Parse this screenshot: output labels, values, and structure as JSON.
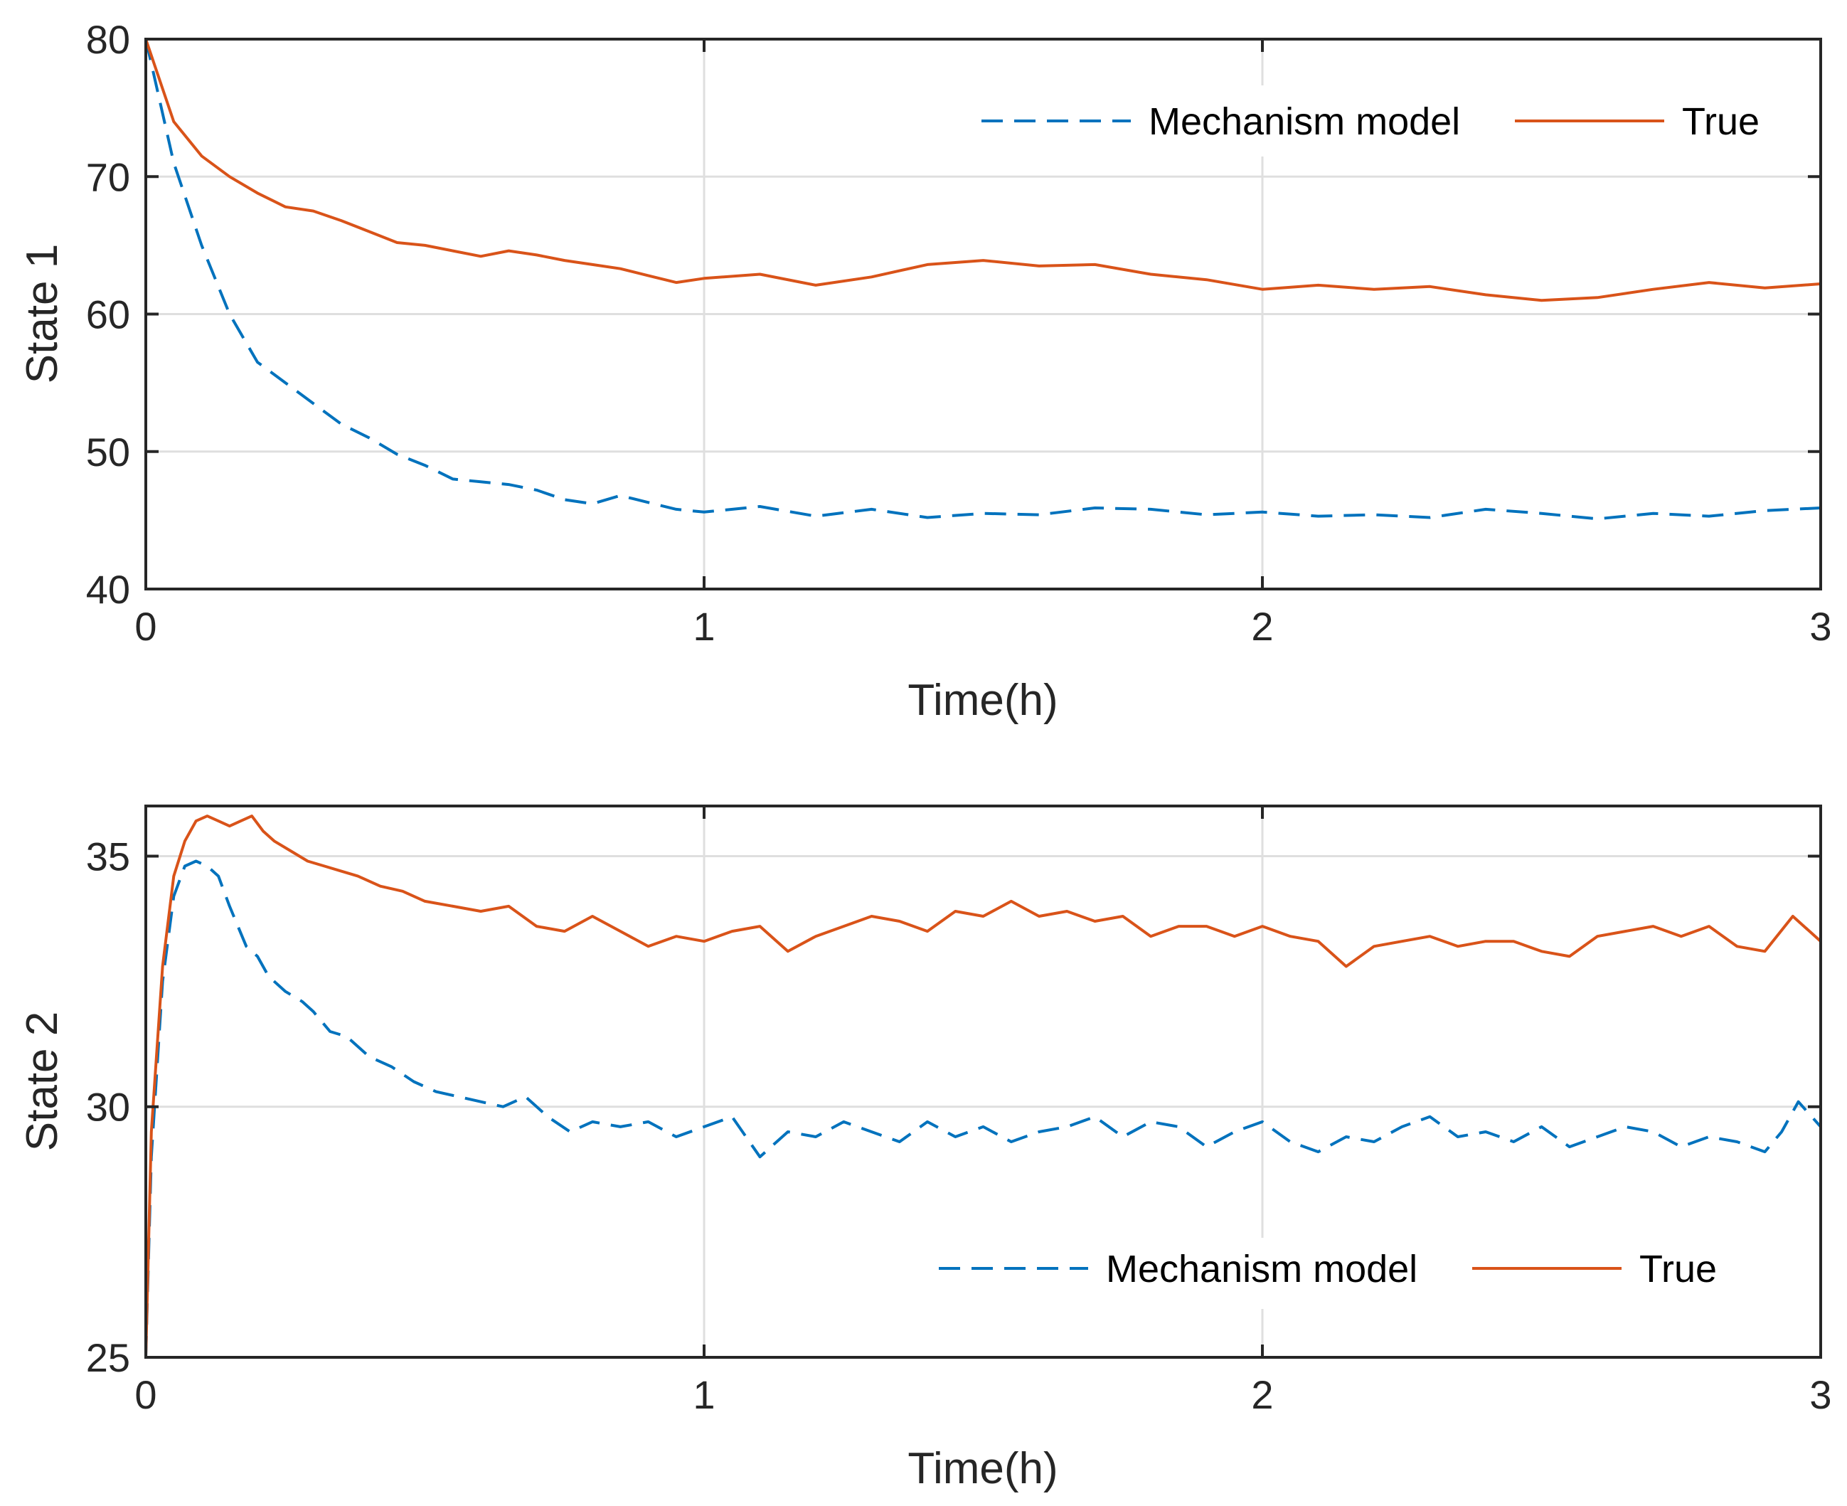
{
  "colors": {
    "mechanism": "#0072BD",
    "true": "#D95319",
    "grid": "#DFDFDF",
    "axis": "#262626",
    "background": "#FFFFFF"
  },
  "chart_data": [
    {
      "type": "line",
      "id": "state1",
      "xlabel": "Time(h)",
      "ylabel": "State 1",
      "xlim": [
        0,
        3
      ],
      "ylim": [
        40,
        80
      ],
      "xticks": [
        0,
        1,
        2,
        3
      ],
      "yticks": [
        40,
        50,
        60,
        70,
        80
      ],
      "xtick_labels": [
        "0",
        "1",
        "2",
        "3"
      ],
      "ytick_labels": [
        "40",
        "50",
        "60",
        "70",
        "80"
      ],
      "grid": true,
      "legend": {
        "position": "top-right",
        "orientation": "horizontal",
        "entries": [
          "Mechanism model",
          "True"
        ]
      },
      "series": [
        {
          "name": "Mechanism model",
          "style": "dashed",
          "color": "#0072BD",
          "x": [
            0,
            0.05,
            0.1,
            0.15,
            0.2,
            0.25,
            0.3,
            0.35,
            0.4,
            0.45,
            0.5,
            0.55,
            0.6,
            0.65,
            0.7,
            0.75,
            0.8,
            0.85,
            0.9,
            0.95,
            1.0,
            1.1,
            1.2,
            1.3,
            1.4,
            1.5,
            1.6,
            1.7,
            1.8,
            1.9,
            2.0,
            2.1,
            2.2,
            2.3,
            2.4,
            2.5,
            2.6,
            2.7,
            2.8,
            2.9,
            3.0
          ],
          "y": [
            80,
            71,
            65,
            60,
            56.5,
            55,
            53.5,
            52,
            51,
            49.8,
            49,
            48,
            47.8,
            47.6,
            47.2,
            46.5,
            46.2,
            46.8,
            46.3,
            45.8,
            45.6,
            46,
            45.3,
            45.8,
            45.2,
            45.5,
            45.4,
            45.9,
            45.8,
            45.4,
            45.6,
            45.3,
            45.4,
            45.2,
            45.8,
            45.5,
            45.1,
            45.5,
            45.3,
            45.7,
            45.9
          ]
        },
        {
          "name": "True",
          "style": "solid",
          "color": "#D95319",
          "x": [
            0,
            0.05,
            0.1,
            0.15,
            0.2,
            0.25,
            0.3,
            0.35,
            0.4,
            0.45,
            0.5,
            0.55,
            0.6,
            0.65,
            0.7,
            0.75,
            0.8,
            0.85,
            0.9,
            0.95,
            1.0,
            1.1,
            1.2,
            1.3,
            1.4,
            1.5,
            1.6,
            1.7,
            1.8,
            1.9,
            2.0,
            2.1,
            2.2,
            2.3,
            2.4,
            2.5,
            2.6,
            2.7,
            2.8,
            2.9,
            3.0
          ],
          "y": [
            80,
            74,
            71.5,
            70,
            68.8,
            67.8,
            67.5,
            66.8,
            66,
            65.2,
            65,
            64.6,
            64.2,
            64.6,
            64.3,
            63.9,
            63.6,
            63.3,
            62.8,
            62.3,
            62.6,
            62.9,
            62.1,
            62.7,
            63.6,
            63.9,
            63.5,
            63.6,
            62.9,
            62.5,
            61.8,
            62.1,
            61.8,
            62.0,
            61.4,
            61.0,
            61.2,
            61.8,
            62.3,
            61.9,
            62.2
          ]
        }
      ]
    },
    {
      "type": "line",
      "id": "state2",
      "xlabel": "Time(h)",
      "ylabel": "State 2",
      "xlim": [
        0,
        3
      ],
      "ylim": [
        25,
        36
      ],
      "xticks": [
        0,
        1,
        2,
        3
      ],
      "yticks": [
        25,
        30,
        35
      ],
      "xtick_labels": [
        "0",
        "1",
        "2",
        "3"
      ],
      "ytick_labels": [
        "25",
        "30",
        "35"
      ],
      "grid": true,
      "legend": {
        "position": "bottom-right",
        "orientation": "horizontal",
        "entries": [
          "Mechanism model",
          "True"
        ]
      },
      "series": [
        {
          "name": "Mechanism model",
          "style": "dashed",
          "color": "#0072BD",
          "x": [
            0,
            0.01,
            0.03,
            0.05,
            0.07,
            0.09,
            0.11,
            0.13,
            0.15,
            0.18,
            0.2,
            0.22,
            0.25,
            0.28,
            0.3,
            0.33,
            0.36,
            0.4,
            0.44,
            0.48,
            0.52,
            0.56,
            0.6,
            0.64,
            0.68,
            0.72,
            0.76,
            0.8,
            0.85,
            0.9,
            0.95,
            1.0,
            1.05,
            1.1,
            1.15,
            1.2,
            1.25,
            1.3,
            1.35,
            1.4,
            1.45,
            1.5,
            1.55,
            1.6,
            1.65,
            1.7,
            1.75,
            1.8,
            1.85,
            1.9,
            1.95,
            2.0,
            2.05,
            2.1,
            2.15,
            2.2,
            2.25,
            2.3,
            2.35,
            2.4,
            2.45,
            2.5,
            2.55,
            2.6,
            2.65,
            2.7,
            2.75,
            2.8,
            2.85,
            2.9,
            2.93,
            2.96,
            3.0
          ],
          "y": [
            25,
            29,
            32.5,
            34.2,
            34.8,
            34.9,
            34.8,
            34.6,
            34.0,
            33.2,
            33.0,
            32.6,
            32.3,
            32.1,
            31.9,
            31.5,
            31.4,
            31.0,
            30.8,
            30.5,
            30.3,
            30.2,
            30.1,
            30.0,
            30.2,
            29.8,
            29.5,
            29.7,
            29.6,
            29.7,
            29.4,
            29.6,
            29.8,
            29.0,
            29.5,
            29.4,
            29.7,
            29.5,
            29.3,
            29.7,
            29.4,
            29.6,
            29.3,
            29.5,
            29.6,
            29.8,
            29.4,
            29.7,
            29.6,
            29.2,
            29.5,
            29.7,
            29.3,
            29.1,
            29.4,
            29.3,
            29.6,
            29.8,
            29.4,
            29.5,
            29.3,
            29.6,
            29.2,
            29.4,
            29.6,
            29.5,
            29.2,
            29.4,
            29.3,
            29.1,
            29.5,
            30.1,
            29.6
          ]
        },
        {
          "name": "True",
          "style": "solid",
          "color": "#D95319",
          "x": [
            0,
            0.01,
            0.03,
            0.05,
            0.07,
            0.09,
            0.11,
            0.13,
            0.15,
            0.17,
            0.19,
            0.21,
            0.23,
            0.26,
            0.29,
            0.32,
            0.35,
            0.38,
            0.42,
            0.46,
            0.5,
            0.55,
            0.6,
            0.65,
            0.7,
            0.75,
            0.8,
            0.85,
            0.9,
            0.95,
            1.0,
            1.05,
            1.1,
            1.15,
            1.2,
            1.25,
            1.3,
            1.35,
            1.4,
            1.45,
            1.5,
            1.55,
            1.6,
            1.65,
            1.7,
            1.75,
            1.8,
            1.85,
            1.9,
            1.95,
            2.0,
            2.05,
            2.1,
            2.15,
            2.2,
            2.25,
            2.3,
            2.35,
            2.4,
            2.45,
            2.5,
            2.55,
            2.6,
            2.65,
            2.7,
            2.75,
            2.8,
            2.85,
            2.9,
            2.95,
            3.0
          ],
          "y": [
            25,
            29.5,
            32.8,
            34.6,
            35.3,
            35.7,
            35.8,
            35.7,
            35.6,
            35.7,
            35.8,
            35.5,
            35.3,
            35.1,
            34.9,
            34.8,
            34.7,
            34.6,
            34.4,
            34.3,
            34.1,
            34.0,
            33.9,
            34.0,
            33.6,
            33.5,
            33.8,
            33.5,
            33.2,
            33.4,
            33.3,
            33.5,
            33.6,
            33.1,
            33.4,
            33.6,
            33.8,
            33.7,
            33.5,
            33.9,
            33.8,
            34.1,
            33.8,
            33.9,
            33.7,
            33.8,
            33.4,
            33.6,
            33.6,
            33.4,
            33.6,
            33.4,
            33.3,
            32.8,
            33.2,
            33.3,
            33.4,
            33.2,
            33.3,
            33.3,
            33.1,
            33.0,
            33.4,
            33.5,
            33.6,
            33.4,
            33.6,
            33.2,
            33.1,
            33.8,
            33.3
          ]
        }
      ]
    }
  ]
}
